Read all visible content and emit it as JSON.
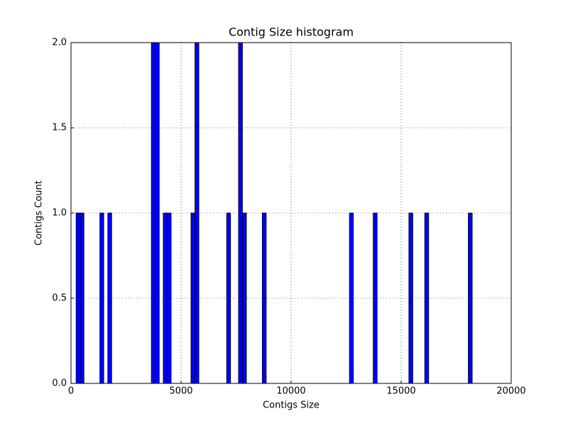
{
  "chart_data": {
    "type": "histogram",
    "title": "Contig Size histogram",
    "x_label": "Contigs Size",
    "y_label": "Contigs Count",
    "bins": [
      230,
      410,
      590,
      770,
      950,
      1130,
      1310,
      1490,
      1670,
      1850,
      2030,
      2210,
      2390,
      2570,
      2750,
      2930,
      3110,
      3290,
      3470,
      3650,
      3830,
      4010,
      4190,
      4370,
      4550,
      4730,
      4910,
      5090,
      5270,
      5450,
      5630,
      5810,
      5990,
      6170,
      6350,
      6530,
      6710,
      6890,
      7070,
      7250,
      7430,
      7610,
      7790,
      7970,
      8150,
      8330,
      8510,
      8690,
      8870,
      9050,
      9230,
      9410,
      9590,
      9770,
      9950,
      10130,
      10310,
      10490,
      10670,
      10850,
      11030,
      11210,
      11390,
      11570,
      11750,
      11930,
      12110,
      12290,
      12470,
      12650,
      12830,
      13010,
      13190,
      13370,
      13550,
      13730,
      13910,
      14090,
      14270,
      14450,
      14630,
      14810,
      14990,
      15170,
      15350,
      15530,
      15710,
      15890,
      16070,
      16250,
      16430,
      16610,
      16790,
      16970,
      17150,
      17330,
      17510,
      17690,
      17870,
      18050,
      18230
    ],
    "counts": [
      1,
      1,
      0,
      0,
      0,
      0,
      1,
      0,
      1,
      0,
      0,
      0,
      0,
      0,
      0,
      0,
      0,
      0,
      0,
      2,
      2,
      0,
      1,
      1,
      0,
      0,
      0,
      0,
      0,
      1,
      2,
      0,
      0,
      0,
      0,
      0,
      0,
      0,
      1,
      0,
      0,
      2,
      1,
      0,
      0,
      0,
      0,
      1,
      0,
      0,
      0,
      0,
      0,
      0,
      0,
      0,
      0,
      0,
      0,
      0,
      0,
      0,
      0,
      0,
      0,
      0,
      0,
      0,
      0,
      1,
      0,
      0,
      0,
      0,
      0,
      1,
      0,
      0,
      0,
      0,
      0,
      0,
      0,
      0,
      1,
      0,
      0,
      0,
      1,
      0,
      0,
      0,
      0,
      0,
      0,
      0,
      0,
      0,
      0,
      1
    ],
    "color": "#0000ff",
    "xlim": [
      0,
      20000
    ],
    "xticks": [
      0,
      5000,
      10000,
      15000,
      20000
    ],
    "ylim": [
      0,
      2
    ],
    "yticks": [
      {
        "value": 0,
        "label": "0.0"
      },
      0.5,
      {
        "value": 1,
        "label": "1.0"
      },
      1.5,
      {
        "value": 2,
        "label": "2.0"
      }
    ],
    "grid": true
  }
}
